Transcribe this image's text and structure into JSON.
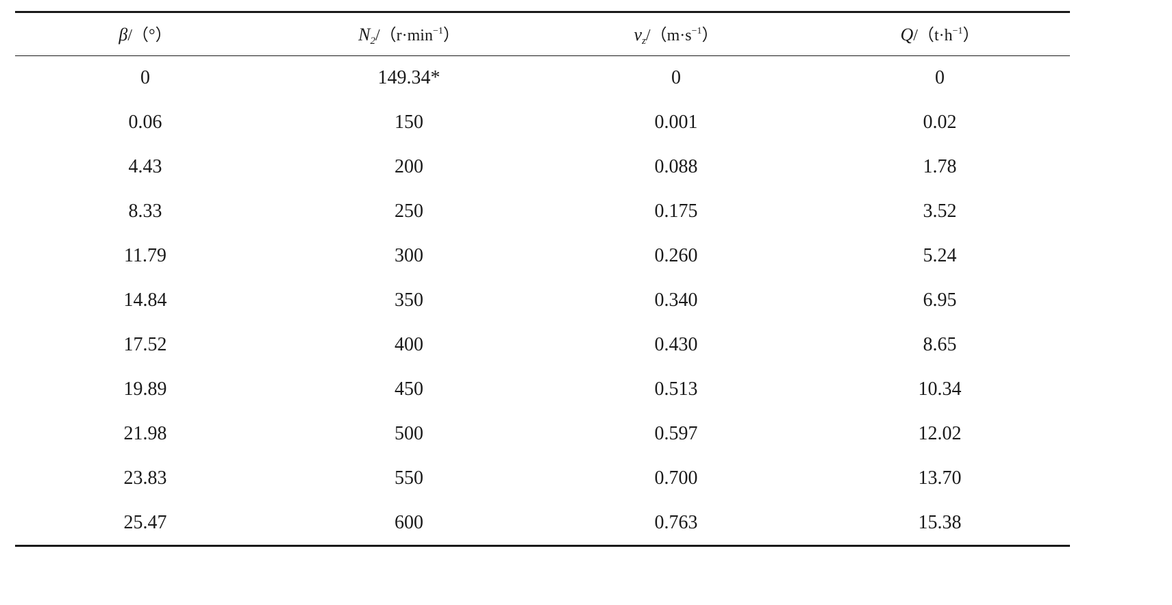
{
  "table": {
    "headers": [
      {
        "symbol": "β",
        "subscript": "",
        "unit_open": "/（",
        "unit_main": "°",
        "unit_sup": "",
        "unit_close": "）"
      },
      {
        "symbol": "N",
        "subscript": "2",
        "unit_open": "/（",
        "unit_main": "r·min",
        "unit_sup": "−1",
        "unit_close": "）"
      },
      {
        "symbol": "v",
        "subscript": "z",
        "unit_open": "/（",
        "unit_main": "m·s",
        "unit_sup": "−1",
        "unit_close": "）"
      },
      {
        "symbol": "Q",
        "subscript": "",
        "unit_open": "/（",
        "unit_main": "t·h",
        "unit_sup": "−1",
        "unit_close": "）"
      }
    ],
    "rows": [
      [
        "0",
        "149.34*",
        "0",
        "0"
      ],
      [
        "0.06",
        "150",
        "0.001",
        "0.02"
      ],
      [
        "4.43",
        "200",
        "0.088",
        "1.78"
      ],
      [
        "8.33",
        "250",
        "0.175",
        "3.52"
      ],
      [
        "11.79",
        "300",
        "0.260",
        "5.24"
      ],
      [
        "14.84",
        "350",
        "0.340",
        "6.95"
      ],
      [
        "17.52",
        "400",
        "0.430",
        "8.65"
      ],
      [
        "19.89",
        "450",
        "0.513",
        "10.34"
      ],
      [
        "21.98",
        "500",
        "0.597",
        "12.02"
      ],
      [
        "23.83",
        "550",
        "0.700",
        "13.70"
      ],
      [
        "25.47",
        "600",
        "0.763",
        "15.38"
      ]
    ]
  }
}
